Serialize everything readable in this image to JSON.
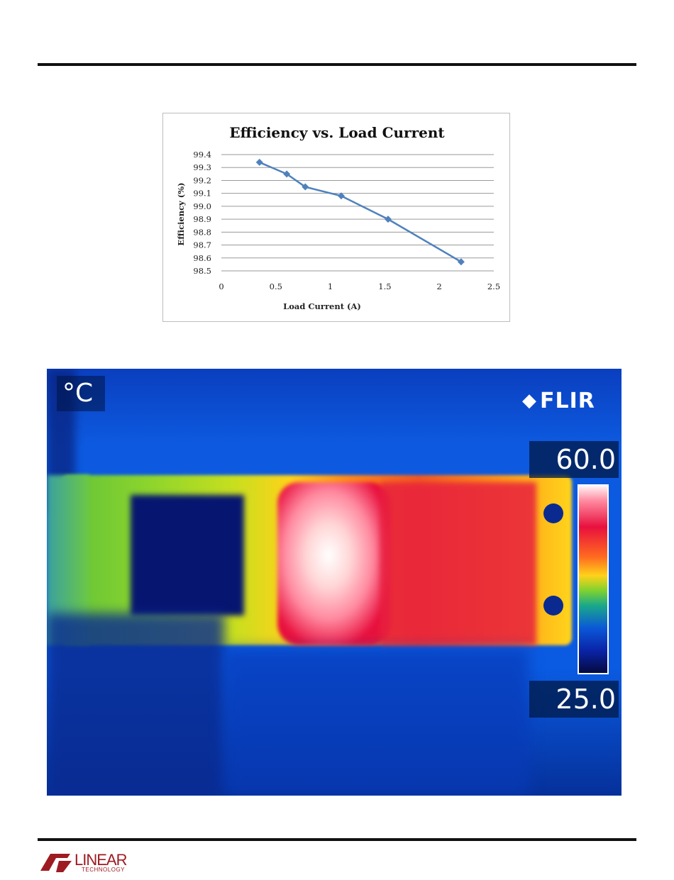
{
  "chart_data": {
    "type": "line",
    "title": "Efficiency vs. Load Current",
    "xlabel": "Load Current (A)",
    "ylabel": "Efficiency (%)",
    "xlim": [
      0,
      2.5
    ],
    "ylim": [
      98.5,
      99.4
    ],
    "x_ticks": [
      "0",
      "0.5",
      "1",
      "1.5",
      "2",
      "2.5"
    ],
    "y_ticks": [
      "99.4",
      "99.3",
      "99.2",
      "99.1",
      "99.0",
      "98.9",
      "98.8",
      "98.7",
      "98.6",
      "98.5"
    ],
    "grid": true,
    "series_color": "#4f81bd",
    "x": [
      0.35,
      0.6,
      0.77,
      1.1,
      1.53,
      2.2
    ],
    "y": [
      99.34,
      99.25,
      99.15,
      99.08,
      98.9,
      98.57
    ]
  },
  "thermal": {
    "unit": "°C",
    "brand": "FLIR",
    "max_temp": "60.0",
    "min_temp": "25.0"
  },
  "footer": {
    "logo_word": "LINEAR",
    "logo_sub": "TECHNOLOGY",
    "logo_color": "#9e1b22"
  }
}
